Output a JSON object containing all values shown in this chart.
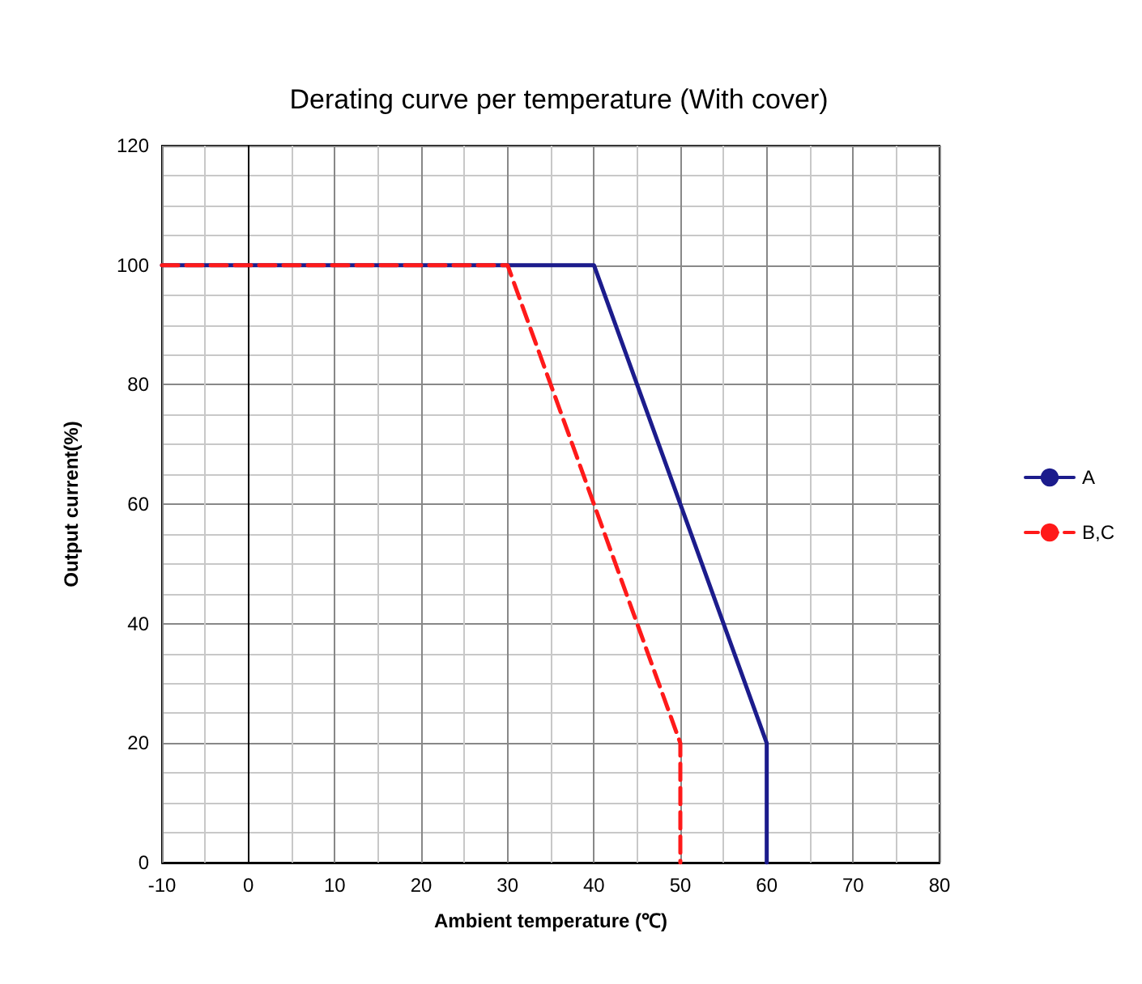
{
  "chart_data": {
    "type": "line",
    "title": "Derating curve per temperature (With cover)",
    "xlabel": "Ambient temperature (℃)",
    "ylabel": "Output current(%)",
    "series": [
      {
        "name": "A",
        "color": "#1c1c8c",
        "line_style": "solid",
        "x": [
          -10,
          40,
          60,
          60
        ],
        "values": [
          100,
          100,
          20,
          0
        ]
      },
      {
        "name": "B,C",
        "color": "#ff1a1a",
        "line_style": "dashed",
        "x": [
          -10,
          30,
          50,
          50
        ],
        "values": [
          100,
          100,
          20,
          0
        ]
      }
    ],
    "xlim": [
      -10,
      80
    ],
    "xticks": [
      -10,
      0,
      10,
      20,
      30,
      40,
      50,
      60,
      70,
      80
    ],
    "ylim": [
      0,
      120
    ],
    "yticks": [
      0,
      20,
      40,
      60,
      80,
      100,
      120
    ],
    "grid": true,
    "legend": "right",
    "marker": "none"
  }
}
